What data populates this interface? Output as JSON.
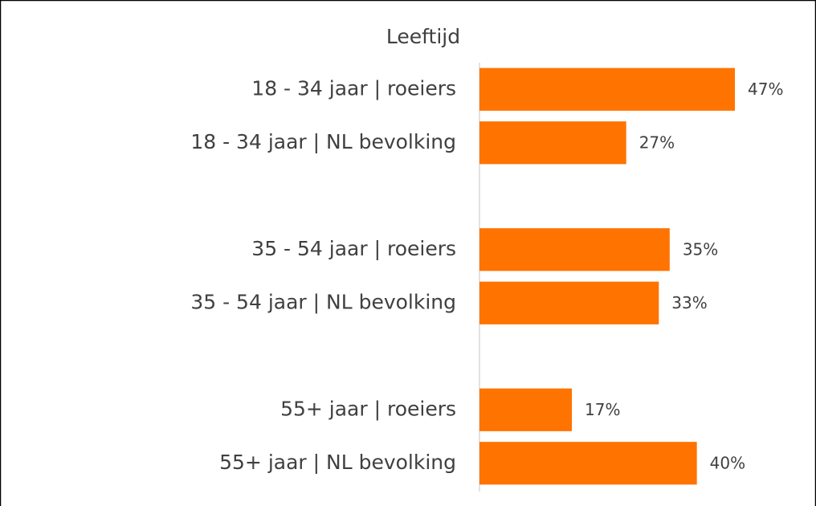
{
  "chart_data": {
    "type": "barh",
    "title": "Leeftijd",
    "categories": [
      "18 - 34 jaar | roeiers",
      "18 - 34 jaar | NL bevolking",
      null,
      "35 - 54 jaar | roeiers",
      "35 - 54 jaar | NL bevolking",
      null,
      "55+ jaar | roeiers",
      "55+ jaar | NL bevolking"
    ],
    "values": [
      47,
      27,
      null,
      35,
      33,
      null,
      17,
      40
    ],
    "value_labels": [
      "47%",
      "27%",
      null,
      "35%",
      "33%",
      null,
      "17%",
      "40%"
    ],
    "color": "#ff7300",
    "xlim": [
      0,
      60
    ]
  }
}
